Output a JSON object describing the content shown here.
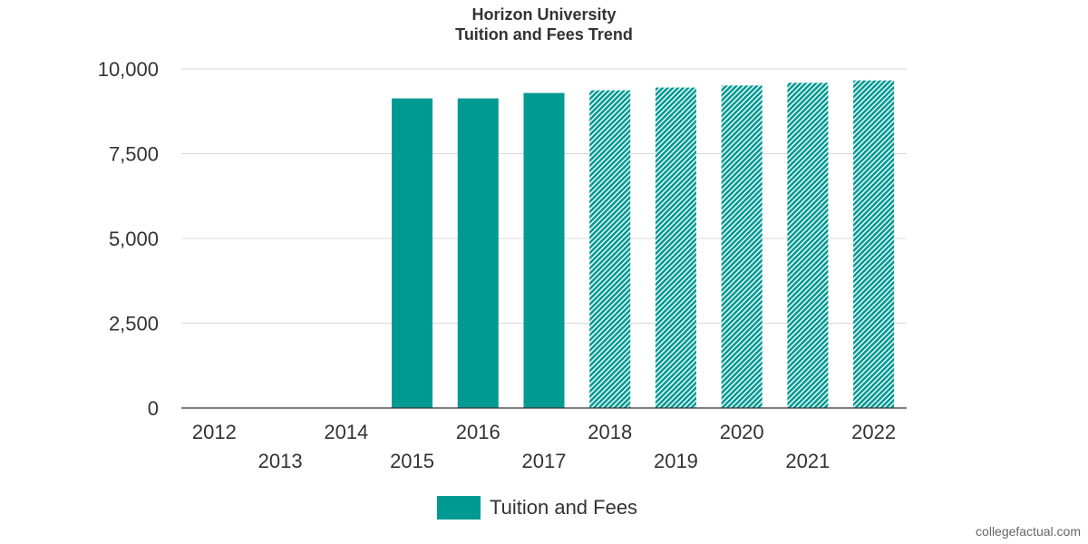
{
  "title": {
    "line1": "Horizon University",
    "line2": "Tuition and Fees Trend"
  },
  "colors": {
    "bar": "#009a93",
    "gridline": "#d9d9d9",
    "axis": "#333333",
    "text": "#333333"
  },
  "chart_data": {
    "type": "bar",
    "title": "Horizon University\nTuition and Fees Trend",
    "categories": [
      "2012",
      "2013",
      "2014",
      "2015",
      "2016",
      "2017",
      "2018",
      "2019",
      "2020",
      "2021",
      "2022"
    ],
    "series": [
      {
        "name": "Tuition and Fees",
        "values": [
          null,
          null,
          null,
          9130,
          9130,
          9290,
          9370,
          9450,
          9510,
          9590,
          9660
        ],
        "projected": [
          false,
          false,
          false,
          false,
          false,
          false,
          true,
          true,
          true,
          true,
          true
        ]
      }
    ],
    "ylim": [
      0,
      10000
    ],
    "yticks": [
      0,
      2500,
      5000,
      7500,
      10000
    ],
    "ytick_labels": [
      "0",
      "2,500",
      "5,000",
      "7,500",
      "10,000"
    ],
    "grid": true,
    "legend": "bottom"
  },
  "legend": {
    "label": "Tuition and Fees"
  },
  "watermark": "collegefactual.com"
}
